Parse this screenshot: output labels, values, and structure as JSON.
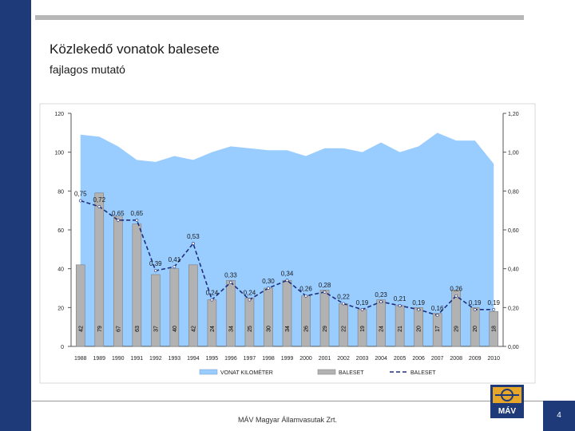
{
  "slide": {
    "title": "Közlekedő vonatok balesete",
    "subtitle": "fajlagos mutató",
    "footer": "MÁV Magyar Államvasutak Zrt.",
    "page_number": "4",
    "logo_text": "MÁV"
  },
  "colors": {
    "sidebar": "#1f3a78",
    "area": "#99ccff",
    "bar": "#b2b2b2",
    "bar_edge": "#7f7f7f",
    "line": "#1f2e7a"
  },
  "chart_data": {
    "type": "bar",
    "categories": [
      "1988",
      "1989",
      "1990",
      "1991",
      "1992",
      "1993",
      "1994",
      "1995",
      "1996",
      "1997",
      "1998",
      "1999",
      "2000",
      "2001",
      "2002",
      "2003",
      "2004",
      "2005",
      "2006",
      "2007",
      "2008",
      "2009",
      "2010"
    ],
    "left_axis": {
      "ylim": [
        0,
        120
      ],
      "ticks": [
        "0",
        "20",
        "40",
        "60",
        "80",
        "100",
        "120"
      ]
    },
    "right_axis": {
      "ylim": [
        0,
        1.2
      ],
      "ticks": [
        "0,00",
        "0,20",
        "0,40",
        "0,60",
        "0,80",
        "1,00",
        "1,20"
      ]
    },
    "series": [
      {
        "name": "VONAT KILOMÉTER",
        "type": "area",
        "axis": "left",
        "values": [
          109,
          108,
          103,
          96,
          95,
          98,
          96,
          100,
          103,
          102,
          101,
          101,
          98,
          102,
          102,
          100,
          105,
          100,
          103,
          110,
          106,
          106,
          94
        ]
      },
      {
        "name": "BALESET",
        "type": "bar",
        "axis": "left",
        "values": [
          42,
          79,
          67,
          63,
          37,
          40,
          42,
          24,
          34,
          25,
          30,
          34,
          26,
          29,
          22,
          19,
          24,
          21,
          20,
          17,
          29,
          20,
          18
        ],
        "labels": [
          "42",
          "79",
          "67",
          "63",
          "37",
          "40",
          "42",
          "24",
          "34",
          "25",
          "30",
          "34",
          "26",
          "29",
          "22",
          "19",
          "24",
          "21",
          "20",
          "17",
          "29",
          "20",
          "18"
        ]
      },
      {
        "name": "BALESET",
        "type": "line",
        "axis": "right",
        "values": [
          0.75,
          0.72,
          0.65,
          0.65,
          0.39,
          0.41,
          0.53,
          0.24,
          0.33,
          0.24,
          0.3,
          0.34,
          0.26,
          0.28,
          0.22,
          0.19,
          0.23,
          0.21,
          0.19,
          0.16,
          0.26,
          0.19,
          0.19
        ],
        "labels": [
          "0,75",
          "0,72",
          "0,65",
          "0,65",
          "0,39",
          "0,41",
          "0,53",
          "0,24",
          "0,33",
          "0,24",
          "0,30",
          "0,34",
          "0,26",
          "0,28",
          "0,22",
          "0,19",
          "0,23",
          "0,21",
          "0,19",
          "0,16",
          "0,26",
          "0,19",
          "0,19"
        ]
      }
    ],
    "legend": {
      "position": "bottom",
      "items": [
        "VONAT KILOMÉTER",
        "BALESET",
        "BALESET"
      ]
    }
  }
}
